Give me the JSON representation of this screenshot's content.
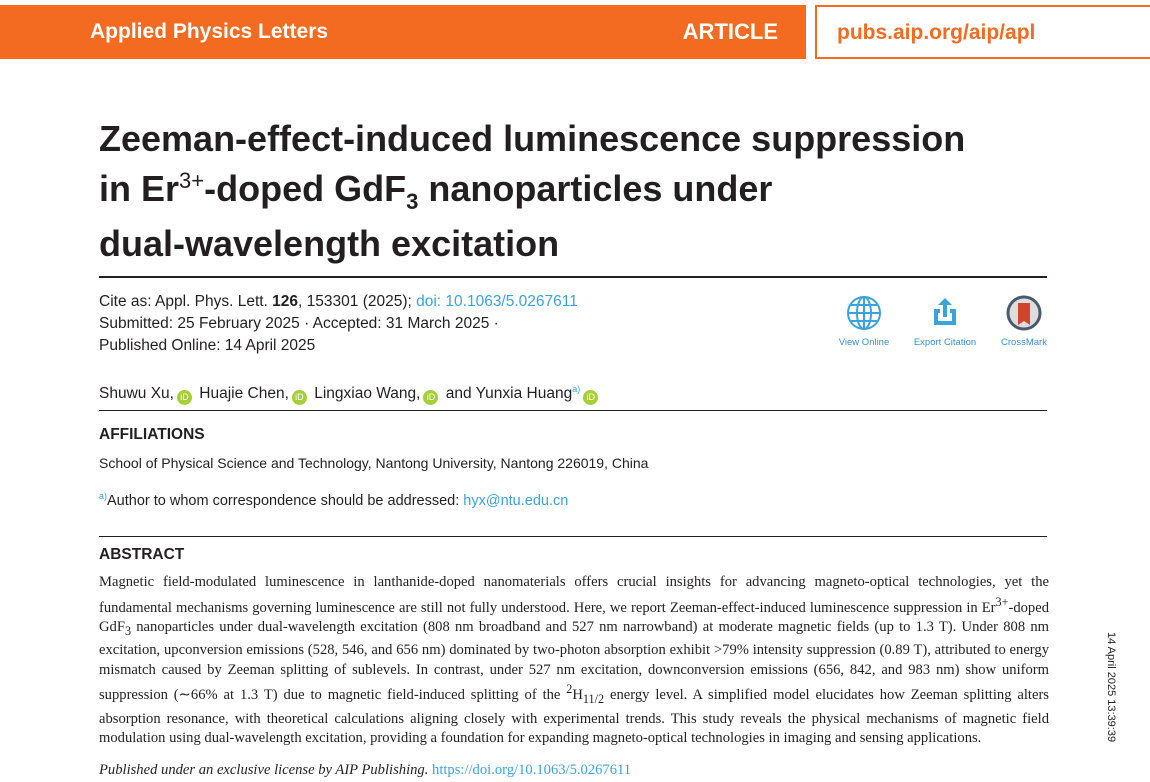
{
  "header": {
    "journal": "Applied Physics Letters",
    "type": "ARTICLE",
    "url": "pubs.aip.org/aip/apl",
    "accent": "#f26b21"
  },
  "title": {
    "line1": "Zeeman-effect-induced luminescence suppression",
    "line2_pre": "in Er",
    "line2_sup": "3+",
    "line2_mid": "-doped GdF",
    "line2_sub": "3",
    "line2_post": " nanoparticles under",
    "line3": "dual-wavelength excitation"
  },
  "cite": {
    "label": "Cite as: Appl. Phys. Lett. ",
    "volume": "126",
    "rest": ", 153301 (2025); ",
    "doi": "doi: 10.1063/5.0267611",
    "dates1": "Submitted: 25 February 2025 · Accepted: 31 March 2025 ·",
    "dates2": "Published Online: 14 April 2025"
  },
  "actions": [
    {
      "label": "View Online",
      "icon": "globe-icon"
    },
    {
      "label": "Export Citation",
      "icon": "export-icon"
    },
    {
      "label": "CrossMark",
      "icon": "crossmark-icon"
    }
  ],
  "authors": [
    "Shuwu Xu,",
    "Huajie Chen,",
    "Lingxiao Wang,",
    "and Yunxia Huang"
  ],
  "author_mark": "a)",
  "affiliations": {
    "heading": "AFFILIATIONS",
    "text": "School of Physical Science and Technology, Nantong University, Nantong 226019, China",
    "corr_mark": "a)",
    "corr_text": "Author to whom correspondence should be addressed: ",
    "email": "hyx@ntu.edu.cn"
  },
  "abstract": {
    "heading": "ABSTRACT",
    "p1": "Magnetic field-modulated luminescence in lanthanide-doped nanomaterials offers crucial insights for advancing magneto-optical technologies, yet the fundamental mechanisms governing luminescence are still not fully understood. Here, we report Zeeman-effect-induced luminescence suppression in Er",
    "sup1": "3+",
    "p2": "-doped GdF",
    "sub1": "3",
    "p3": " nanoparticles under dual-wavelength excitation (808 nm broadband and 527 nm narrowband) at moderate magnetic fields (up to 1.3 T). Under 808 nm excitation, upconversion emissions (528, 546, and 656 nm) dominated by two-photon absorption exhibit >79% intensity suppression (0.89 T), attributed to energy mismatch caused by Zeeman splitting of sublevels. In contrast, under 527 nm excitation, downconversion emissions (656, 842, and 983 nm) show uniform suppression (∼66% at 1.3 T) due to magnetic field-induced splitting of the ",
    "sup2": "2",
    "p4": "H",
    "sub2": "11/2",
    "p5": " energy level. A simplified model elucidates how Zeeman splitting alters absorption resonance, with theoretical calculations aligning closely with experimental trends. This study reveals the physical mechanisms of magnetic field modulation using dual-wavelength excitation, providing a foundation for expanding magneto-optical technologies in imaging and sensing applications."
  },
  "license": {
    "text": "Published under an exclusive license by AIP Publishing. ",
    "link": "https://doi.org/10.1063/5.0267611"
  },
  "stamp": "14 April 2025 13:39:39"
}
